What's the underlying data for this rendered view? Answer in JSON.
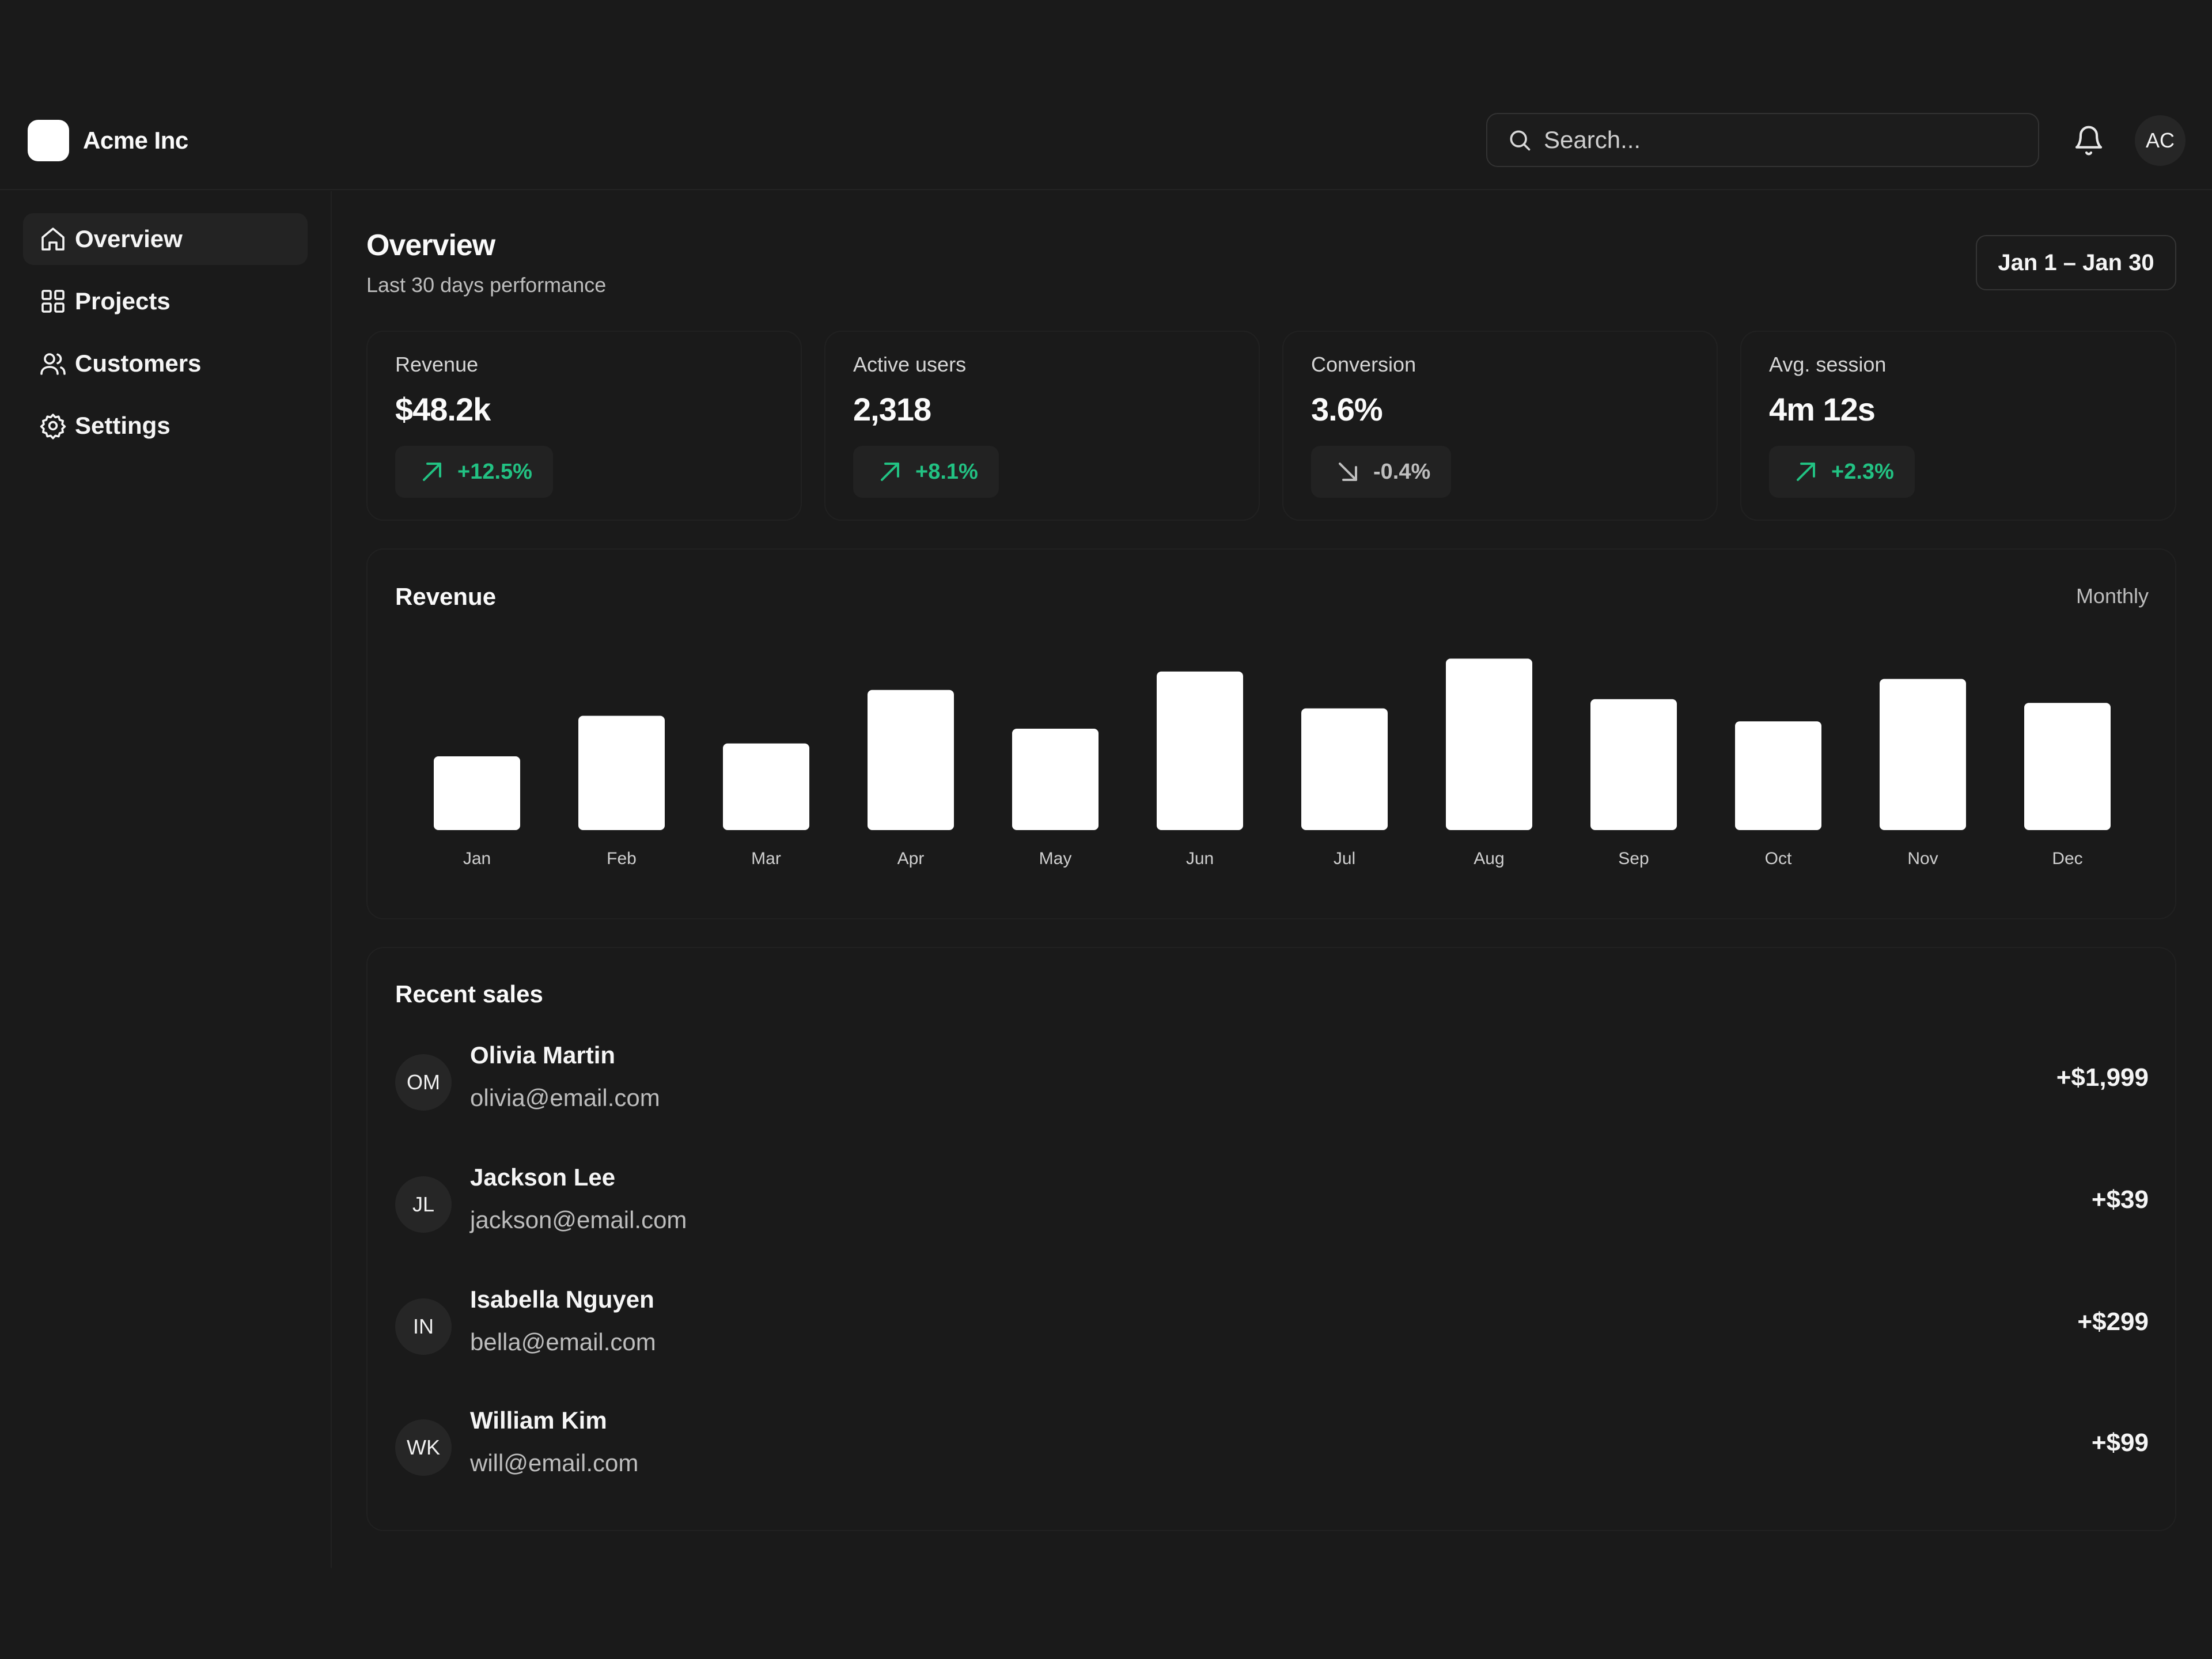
{
  "header": {
    "brand_name": "Acme Inc",
    "search_placeholder": "Search...",
    "avatar_initials": "AC"
  },
  "sidebar": {
    "items": [
      {
        "label": "Overview",
        "icon": "home-icon",
        "active": true
      },
      {
        "label": "Projects",
        "icon": "grid-icon",
        "active": false
      },
      {
        "label": "Customers",
        "icon": "users-icon",
        "active": false
      },
      {
        "label": "Settings",
        "icon": "gear-icon",
        "active": false
      }
    ]
  },
  "main": {
    "title": "Overview",
    "subtitle": "Last 30 days performance",
    "date_range": "Jan 1 – Jan 30",
    "kpis": [
      {
        "label": "Revenue",
        "value": "$48.2k",
        "change": "+12.5%",
        "trend": "up"
      },
      {
        "label": "Active users",
        "value": "2,318",
        "change": "+8.1%",
        "trend": "up"
      },
      {
        "label": "Conversion",
        "value": "3.6%",
        "change": "-0.4%",
        "trend": "down"
      },
      {
        "label": "Avg. session",
        "value": "4m 12s",
        "change": "+2.3%",
        "trend": "up"
      }
    ],
    "revenue_card": {
      "title": "Revenue",
      "period": "Monthly"
    },
    "recent_sales": {
      "title": "Recent sales",
      "rows": [
        {
          "initials": "OM",
          "name": "Olivia Martin",
          "email": "olivia@email.com",
          "amount": "+$1,999"
        },
        {
          "initials": "JL",
          "name": "Jackson Lee",
          "email": "jackson@email.com",
          "amount": "+$39"
        },
        {
          "initials": "IN",
          "name": "Isabella Nguyen",
          "email": "bella@email.com",
          "amount": "+$299"
        },
        {
          "initials": "WK",
          "name": "William Kim",
          "email": "will@email.com",
          "amount": "+$99"
        }
      ]
    }
  },
  "colors": {
    "background": "#1a1a1a",
    "positive": "#22c283",
    "bar": "#ffffff"
  },
  "chart_data": {
    "type": "bar",
    "title": "Revenue",
    "categories": [
      "Jan",
      "Feb",
      "Mar",
      "Apr",
      "May",
      "Jun",
      "Jul",
      "Aug",
      "Sep",
      "Oct",
      "Nov",
      "Dec"
    ],
    "values": [
      40,
      62,
      47,
      76,
      55,
      86,
      66,
      93,
      71,
      59,
      82,
      69
    ],
    "ylim": [
      0,
      100
    ],
    "grid": false,
    "legend": "none"
  }
}
